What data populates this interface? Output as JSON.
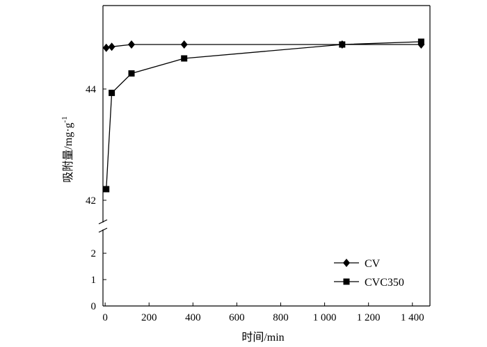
{
  "chart_data": {
    "type": "line",
    "xlabel": "时间/min",
    "ylabel": "吸附量/mg·g",
    "ylabel_sup": "-1",
    "x_ticks": [
      {
        "value": 0,
        "label": "0"
      },
      {
        "value": 200,
        "label": "200"
      },
      {
        "value": 400,
        "label": "400"
      },
      {
        "value": 600,
        "label": "600"
      },
      {
        "value": 800,
        "label": "800"
      },
      {
        "value": 1000,
        "label": "1 000"
      },
      {
        "value": 1200,
        "label": "1 200"
      },
      {
        "value": 1400,
        "label": "1 400"
      }
    ],
    "xlim": [
      -10,
      1480
    ],
    "y_axis_break": true,
    "y_lower": {
      "range": [
        0,
        2.9
      ],
      "ticks": [
        {
          "value": 0,
          "label": "0"
        },
        {
          "value": 1,
          "label": "1"
        },
        {
          "value": 2,
          "label": "2"
        }
      ]
    },
    "y_upper": {
      "range": [
        41.6,
        45.5
      ],
      "ticks": [
        {
          "value": 42,
          "label": "42"
        },
        {
          "value": 44,
          "label": "44"
        }
      ]
    },
    "legend_position": "bottom-right",
    "series": [
      {
        "name": "CV",
        "marker": "diamond",
        "color": "#000000",
        "x": [
          5,
          30,
          120,
          360,
          1080,
          1440
        ],
        "y": [
          44.74,
          44.76,
          44.8,
          44.8,
          44.8,
          44.8
        ]
      },
      {
        "name": "CVC350",
        "marker": "square",
        "color": "#000000",
        "x": [
          5,
          30,
          120,
          360,
          1080,
          1440
        ],
        "y": [
          42.2,
          43.93,
          44.28,
          44.55,
          44.8,
          44.85
        ]
      }
    ]
  }
}
